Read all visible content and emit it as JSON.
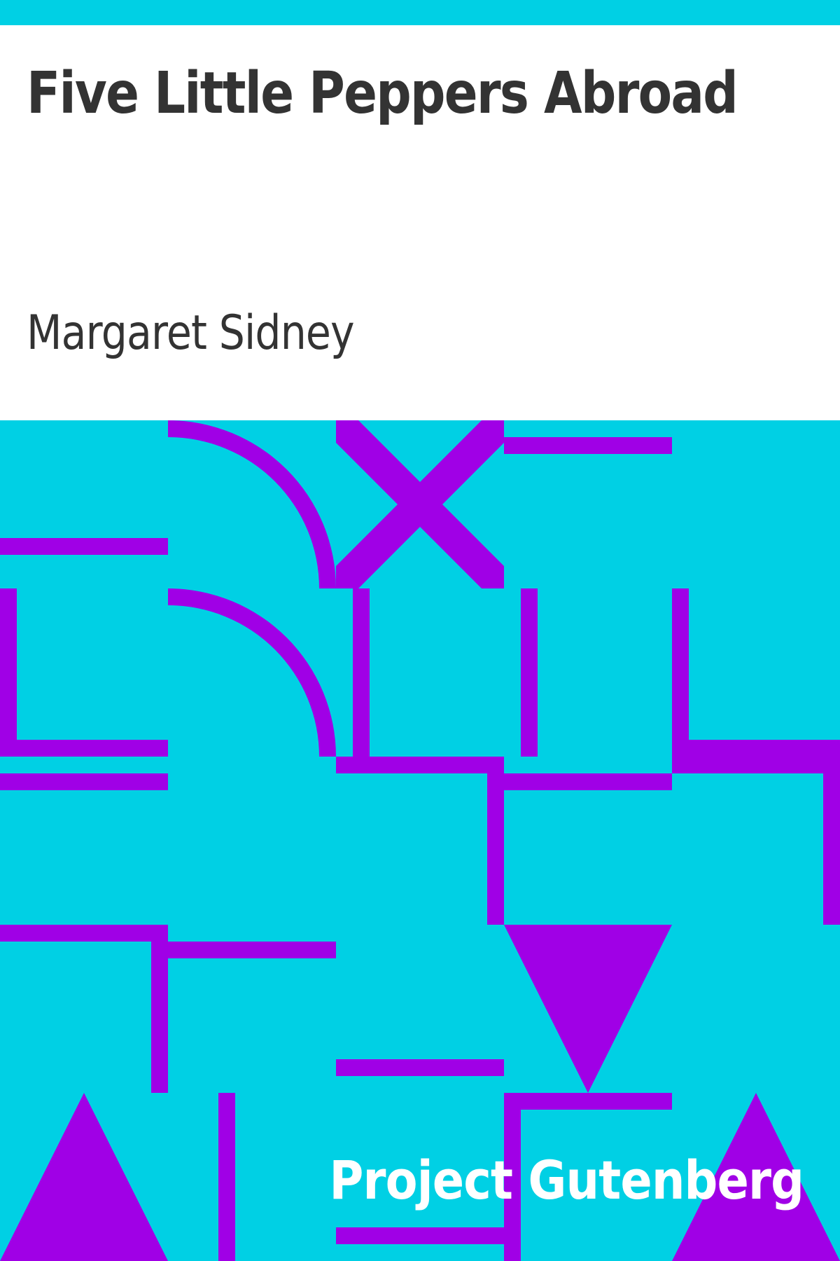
{
  "cover": {
    "title": "Five Little Peppers Abroad",
    "author": "Margaret Sidney",
    "publisher": "Project Gutenberg"
  },
  "colors": {
    "background": "#00d0e4",
    "pattern": "#a000e6",
    "panel": "#ffffff",
    "text": "#333333",
    "publisher_text": "#ffffff"
  }
}
